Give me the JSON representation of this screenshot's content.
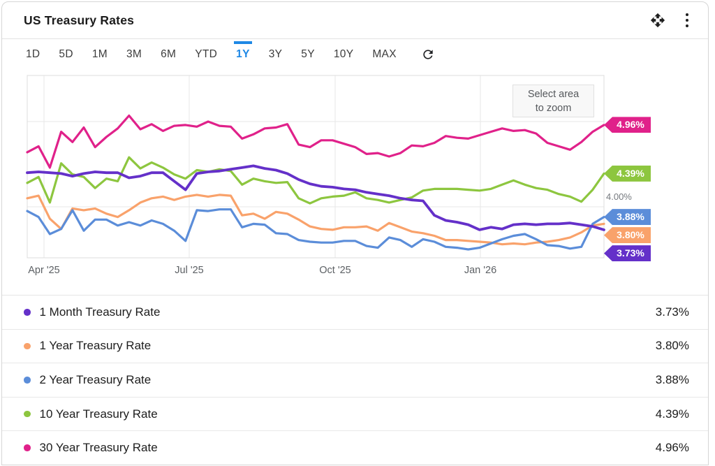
{
  "header": {
    "title": "US Treasury Rates"
  },
  "tabs": {
    "items": [
      {
        "label": "1D",
        "active": false
      },
      {
        "label": "5D",
        "active": false
      },
      {
        "label": "1M",
        "active": false
      },
      {
        "label": "3M",
        "active": false
      },
      {
        "label": "6M",
        "active": false
      },
      {
        "label": "YTD",
        "active": false
      },
      {
        "label": "1Y",
        "active": true
      },
      {
        "label": "3Y",
        "active": false
      },
      {
        "label": "5Y",
        "active": false
      },
      {
        "label": "10Y",
        "active": false
      },
      {
        "label": "MAX",
        "active": false
      }
    ]
  },
  "chart": {
    "zoom_hint_line1": "Select area",
    "zoom_hint_line2": "to zoom",
    "y_axis_label": "4.00%"
  },
  "chart_data": {
    "type": "line",
    "title": "US Treasury Rates",
    "x_labels": [
      "Apr '25",
      "Jul '25",
      "Oct '25",
      "Jan '26"
    ],
    "y_gridlines": [
      5.0,
      4.0
    ],
    "y_visible_tick": "4.00%",
    "y_range": [
      3.4,
      5.54
    ],
    "legend_position": "bottom",
    "series": [
      {
        "name": "1 Month Treasury Rate",
        "color": "#6430C9",
        "end_label": "3.73%",
        "values": [
          4.4,
          4.41,
          4.4,
          4.39,
          4.36,
          4.39,
          4.41,
          4.4,
          4.4,
          4.34,
          4.36,
          4.4,
          4.4,
          4.3,
          4.2,
          4.39,
          4.41,
          4.42,
          4.44,
          4.46,
          4.48,
          4.45,
          4.43,
          4.39,
          4.32,
          4.27,
          4.24,
          4.23,
          4.21,
          4.2,
          4.17,
          4.15,
          4.13,
          4.1,
          4.08,
          4.07,
          3.9,
          3.84,
          3.82,
          3.79,
          3.73,
          3.76,
          3.74,
          3.79,
          3.8,
          3.79,
          3.8,
          3.8,
          3.81,
          3.79,
          3.77,
          3.73
        ]
      },
      {
        "name": "1 Year Treasury Rate",
        "color": "#F9A26B",
        "end_label": "3.80%",
        "values": [
          4.1,
          4.13,
          3.86,
          3.74,
          3.98,
          3.96,
          3.98,
          3.92,
          3.88,
          3.96,
          4.05,
          4.1,
          4.12,
          4.08,
          4.12,
          4.14,
          4.12,
          4.14,
          4.13,
          3.9,
          3.92,
          3.86,
          3.94,
          3.92,
          3.85,
          3.77,
          3.74,
          3.73,
          3.76,
          3.76,
          3.77,
          3.72,
          3.81,
          3.76,
          3.71,
          3.69,
          3.66,
          3.61,
          3.61,
          3.6,
          3.59,
          3.58,
          3.56,
          3.57,
          3.56,
          3.58,
          3.59,
          3.61,
          3.64,
          3.7,
          3.78,
          3.8
        ]
      },
      {
        "name": "2 Year Treasury Rate",
        "color": "#5B8DD9",
        "end_label": "3.88%",
        "values": [
          3.95,
          3.88,
          3.68,
          3.74,
          3.96,
          3.72,
          3.85,
          3.85,
          3.78,
          3.82,
          3.78,
          3.84,
          3.8,
          3.72,
          3.6,
          3.96,
          3.95,
          3.97,
          3.97,
          3.76,
          3.8,
          3.79,
          3.69,
          3.68,
          3.61,
          3.59,
          3.58,
          3.58,
          3.6,
          3.6,
          3.54,
          3.52,
          3.64,
          3.61,
          3.53,
          3.62,
          3.59,
          3.53,
          3.52,
          3.5,
          3.52,
          3.57,
          3.62,
          3.66,
          3.68,
          3.62,
          3.55,
          3.54,
          3.51,
          3.53,
          3.8,
          3.88
        ]
      },
      {
        "name": "10 Year Treasury Rate",
        "color": "#8DC63F",
        "end_label": "4.39%",
        "values": [
          4.28,
          4.35,
          4.05,
          4.51,
          4.38,
          4.35,
          4.22,
          4.33,
          4.3,
          4.58,
          4.45,
          4.52,
          4.46,
          4.38,
          4.33,
          4.43,
          4.41,
          4.44,
          4.42,
          4.26,
          4.33,
          4.3,
          4.28,
          4.29,
          4.1,
          4.04,
          4.1,
          4.12,
          4.13,
          4.17,
          4.1,
          4.08,
          4.05,
          4.08,
          4.11,
          4.19,
          4.21,
          4.21,
          4.21,
          4.2,
          4.19,
          4.21,
          4.26,
          4.31,
          4.26,
          4.22,
          4.2,
          4.15,
          4.12,
          4.06,
          4.2,
          4.39
        ]
      },
      {
        "name": "30 Year Treasury Rate",
        "color": "#E0218A",
        "end_label": "4.96%",
        "values": [
          4.64,
          4.71,
          4.46,
          4.88,
          4.76,
          4.93,
          4.7,
          4.82,
          4.92,
          5.07,
          4.91,
          4.97,
          4.89,
          4.95,
          4.96,
          4.94,
          5.0,
          4.95,
          4.94,
          4.8,
          4.85,
          4.92,
          4.93,
          4.97,
          4.73,
          4.7,
          4.78,
          4.78,
          4.74,
          4.7,
          4.62,
          4.63,
          4.59,
          4.63,
          4.72,
          4.71,
          4.75,
          4.83,
          4.81,
          4.8,
          4.84,
          4.88,
          4.92,
          4.89,
          4.9,
          4.86,
          4.75,
          4.71,
          4.67,
          4.76,
          4.88,
          4.96
        ]
      }
    ]
  },
  "legend": {
    "rows": [
      {
        "name": "1 Month Treasury Rate",
        "value": "3.73%",
        "color": "#6430C9"
      },
      {
        "name": "1 Year Treasury Rate",
        "value": "3.80%",
        "color": "#F9A26B"
      },
      {
        "name": "2 Year Treasury Rate",
        "value": "3.88%",
        "color": "#5B8DD9"
      },
      {
        "name": "10 Year Treasury Rate",
        "value": "4.39%",
        "color": "#8DC63F"
      },
      {
        "name": "30 Year Treasury Rate",
        "value": "4.96%",
        "color": "#E0218A"
      }
    ]
  }
}
